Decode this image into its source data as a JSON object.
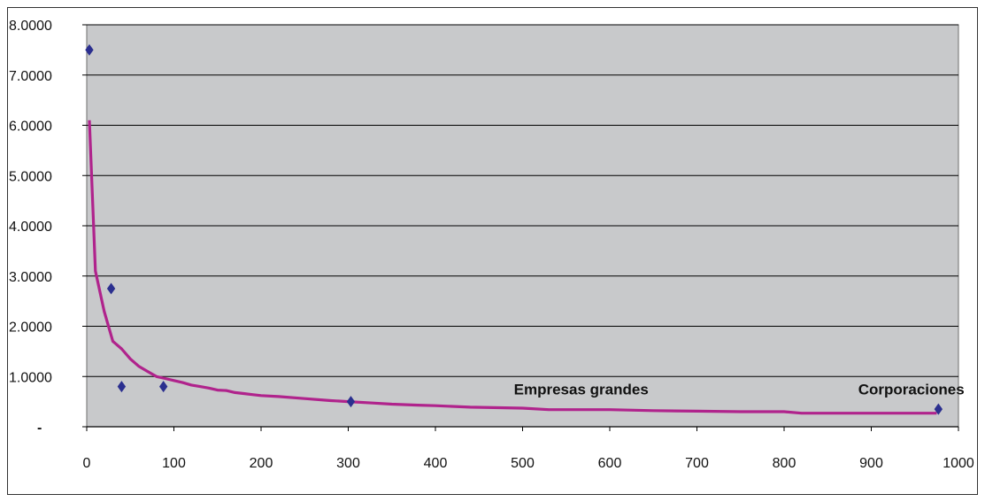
{
  "chart_data": {
    "type": "scatter",
    "xlim": [
      0,
      1000
    ],
    "ylim": [
      0,
      8
    ],
    "x_ticks": [
      "0",
      "100",
      "200",
      "300",
      "400",
      "500",
      "600",
      "700",
      "800",
      "900",
      "1000"
    ],
    "y_ticks": [
      "-",
      "1.0000",
      "2.0000",
      "3.0000",
      "4.0000",
      "5.0000",
      "6.0000",
      "7.0000",
      "8.0000"
    ],
    "grid": true,
    "plot_background": "#c8c9cb",
    "series": [
      {
        "kind": "points",
        "color": "#2b2f8f",
        "x": [
          3,
          28,
          40,
          88,
          303,
          977
        ],
        "y": [
          7.5,
          2.75,
          0.8,
          0.8,
          0.5,
          0.35
        ]
      },
      {
        "kind": "trendline",
        "color": "#b0238c",
        "x": [
          3,
          10,
          20,
          30,
          40,
          50,
          60,
          70,
          80,
          90,
          100,
          110,
          120,
          130,
          140,
          150,
          160,
          170,
          180,
          190,
          200,
          220,
          250,
          280,
          300,
          330,
          350,
          380,
          400,
          440,
          500,
          530,
          600,
          650,
          700,
          750,
          800,
          820,
          900,
          975
        ],
        "y": [
          6.1,
          3.1,
          2.3,
          1.7,
          1.55,
          1.35,
          1.2,
          1.1,
          1.0,
          0.96,
          0.92,
          0.88,
          0.83,
          0.8,
          0.77,
          0.73,
          0.72,
          0.68,
          0.66,
          0.64,
          0.62,
          0.6,
          0.56,
          0.52,
          0.5,
          0.47,
          0.45,
          0.43,
          0.42,
          0.39,
          0.37,
          0.34,
          0.34,
          0.32,
          0.31,
          0.3,
          0.3,
          0.27,
          0.27,
          0.27
        ]
      }
    ],
    "annotations": [
      {
        "text": "Empresas grandes",
        "x": 490,
        "y": 0.8
      },
      {
        "text": "Corporaciones",
        "x": 885,
        "y": 0.8
      }
    ]
  }
}
